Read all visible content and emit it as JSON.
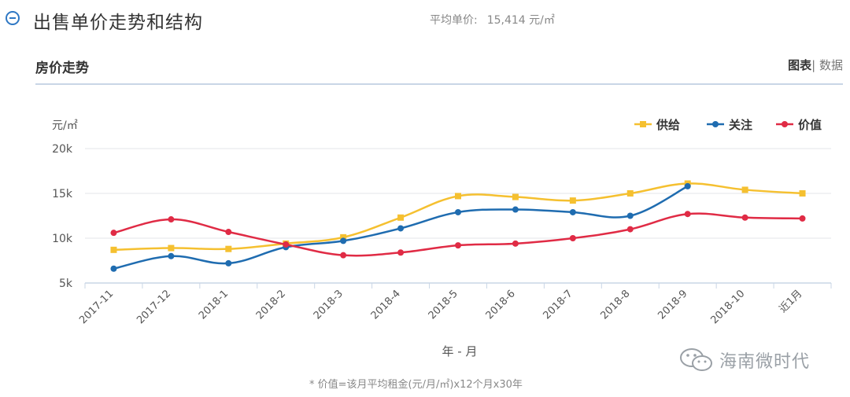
{
  "header": {
    "title": "出售单价走势和结构",
    "avg_label": "平均单价:",
    "avg_value": "15,414 元/㎡"
  },
  "subheader": {
    "title": "房价走势",
    "view_chart": "图表",
    "separator": "|",
    "view_data": "数据"
  },
  "chart_data": {
    "type": "line",
    "title": "",
    "xlabel": "年 - 月",
    "ylabel": "元/㎡",
    "ylim": [
      5000,
      20000
    ],
    "yticks": [
      5000,
      10000,
      15000,
      20000
    ],
    "ytick_labels": [
      "5k",
      "10k",
      "15k",
      "20k"
    ],
    "categories": [
      "2017-11",
      "2017-12",
      "2018-1",
      "2018-2",
      "2018-3",
      "2018-4",
      "2018-5",
      "2018-6",
      "2018-7",
      "2018-8",
      "2018-9",
      "2018-10",
      "近1月"
    ],
    "legend_position": "top-right",
    "grid": true,
    "series": [
      {
        "name": "供给",
        "color": "#f5c030",
        "marker": "square",
        "values": [
          8700,
          8900,
          8800,
          9400,
          10100,
          12300,
          14700,
          14600,
          14200,
          15000,
          16100,
          15400,
          15000
        ]
      },
      {
        "name": "关注",
        "color": "#1f6cb0",
        "marker": "circle",
        "values": [
          6600,
          8000,
          7200,
          9000,
          9700,
          11100,
          12900,
          13200,
          12900,
          12500,
          15800,
          null,
          null
        ]
      },
      {
        "name": "价值",
        "color": "#e02b45",
        "marker": "circle",
        "values": [
          10600,
          12100,
          10700,
          9300,
          8100,
          8400,
          9200,
          9400,
          10000,
          11000,
          12700,
          12300,
          12200
        ]
      }
    ]
  },
  "note": "* 价值=该月平均租金(元/月/㎡)x12个月x30年",
  "watermark": "海南微时代",
  "colors": {
    "accent": "#2f78c4",
    "divider": "#c9d6e6"
  }
}
